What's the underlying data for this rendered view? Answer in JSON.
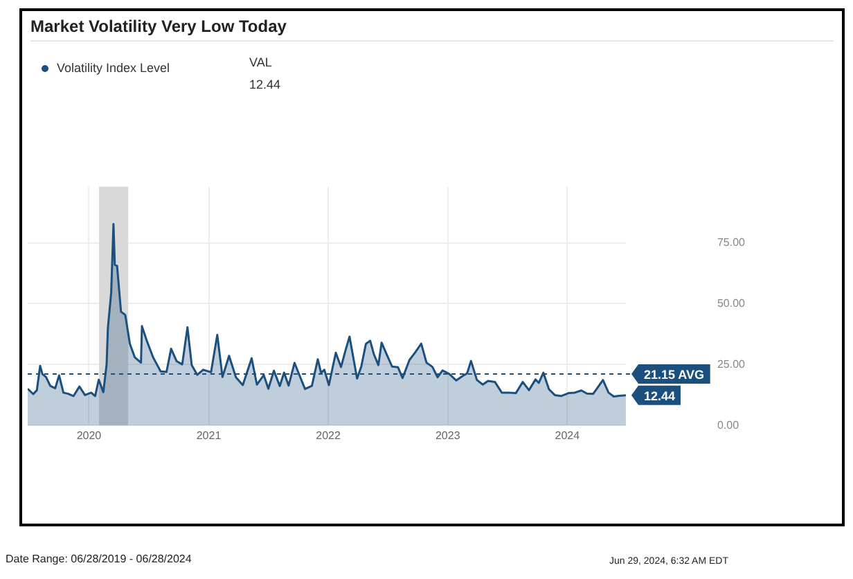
{
  "chart_data": {
    "type": "area",
    "title": "Market Volatility Very Low Today",
    "legend_title": "VAL",
    "legend": "top left",
    "x": [
      "2019-06-28",
      "2019-07-15",
      "2019-07-26",
      "2019-08-05",
      "2019-08-12",
      "2019-08-23",
      "2019-09-05",
      "2019-09-20",
      "2019-10-02",
      "2019-10-15",
      "2019-10-30",
      "2019-11-15",
      "2019-12-03",
      "2019-12-20",
      "2020-01-08",
      "2020-01-20",
      "2020-01-31",
      "2020-02-14",
      "2020-02-24",
      "2020-02-28",
      "2020-03-09",
      "2020-03-16",
      "2020-03-20",
      "2020-03-27",
      "2020-04-08",
      "2020-04-21",
      "2020-05-05",
      "2020-05-20",
      "2020-06-08",
      "2020-06-11",
      "2020-06-26",
      "2020-07-15",
      "2020-08-07",
      "2020-08-25",
      "2020-09-08",
      "2020-09-25",
      "2020-10-12",
      "2020-10-28",
      "2020-11-10",
      "2020-11-27",
      "2020-12-15",
      "2021-01-08",
      "2021-01-27",
      "2021-02-12",
      "2021-03-04",
      "2021-03-25",
      "2021-04-15",
      "2021-05-12",
      "2021-05-28",
      "2021-06-18",
      "2021-07-02",
      "2021-07-19",
      "2021-08-06",
      "2021-08-19",
      "2021-09-02",
      "2021-09-20",
      "2021-10-04",
      "2021-10-22",
      "2021-11-12",
      "2021-11-30",
      "2021-12-10",
      "2021-12-20",
      "2022-01-03",
      "2022-01-24",
      "2022-02-09",
      "2022-02-23",
      "2022-03-07",
      "2022-03-30",
      "2022-04-12",
      "2022-04-26",
      "2022-05-09",
      "2022-05-20",
      "2022-06-03",
      "2022-06-13",
      "2022-06-30",
      "2022-07-15",
      "2022-08-02",
      "2022-08-16",
      "2022-09-06",
      "2022-09-23",
      "2022-10-12",
      "2022-10-28",
      "2022-11-15",
      "2022-12-01",
      "2022-12-16",
      "2023-01-06",
      "2023-01-27",
      "2023-02-15",
      "2023-03-01",
      "2023-03-13",
      "2023-03-31",
      "2023-04-18",
      "2023-05-04",
      "2023-05-25",
      "2023-06-15",
      "2023-07-07",
      "2023-07-28",
      "2023-08-18",
      "2023-09-06",
      "2023-09-26",
      "2023-10-06",
      "2023-10-20",
      "2023-11-06",
      "2023-11-24",
      "2023-12-13",
      "2024-01-05",
      "2024-01-24",
      "2024-02-13",
      "2024-03-01",
      "2024-03-20",
      "2024-04-05",
      "2024-04-19",
      "2024-05-06",
      "2024-05-22",
      "2024-06-07",
      "2024-06-28"
    ],
    "series": [
      {
        "name": "Volatility Index Level",
        "color": "#1b4f7d",
        "values": [
          15.1,
          12.9,
          14.5,
          24.5,
          21.1,
          19.9,
          16.3,
          15.3,
          20.6,
          13.5,
          13.0,
          12.1,
          16.0,
          12.5,
          13.5,
          12.1,
          18.8,
          13.7,
          25.0,
          40.1,
          54.5,
          82.7,
          66.0,
          65.5,
          46.7,
          45.4,
          33.6,
          28.0,
          25.8,
          40.8,
          34.7,
          28.0,
          22.2,
          22.0,
          31.5,
          26.4,
          25.1,
          40.3,
          24.8,
          20.8,
          22.9,
          21.9,
          37.2,
          19.9,
          28.6,
          19.8,
          16.6,
          27.6,
          16.8,
          20.7,
          15.1,
          22.5,
          16.2,
          21.7,
          16.4,
          25.7,
          21.0,
          15.0,
          16.3,
          27.2,
          21.6,
          22.9,
          16.6,
          29.9,
          24.0,
          31.0,
          36.5,
          19.3,
          24.3,
          33.5,
          34.8,
          29.4,
          24.8,
          34.0,
          28.7,
          24.2,
          23.9,
          19.5,
          26.9,
          29.9,
          33.6,
          25.8,
          24.1,
          19.8,
          22.6,
          21.1,
          18.5,
          20.3,
          21.4,
          26.5,
          18.7,
          16.8,
          18.3,
          17.9,
          13.5,
          13.5,
          13.3,
          17.9,
          14.5,
          18.9,
          17.5,
          21.7,
          14.9,
          12.5,
          12.1,
          13.3,
          13.5,
          14.4,
          13.1,
          13.0,
          16.0,
          18.7,
          13.5,
          11.9,
          12.2,
          12.44
        ]
      }
    ],
    "value_labels": [
      null,
      null,
      null,
      null,
      null,
      null,
      null,
      null,
      null,
      null,
      null,
      null,
      null,
      null,
      null,
      null,
      null,
      null,
      null,
      null,
      null,
      null,
      null,
      null,
      null,
      null,
      null,
      null,
      null,
      null,
      null,
      null,
      null,
      null,
      null,
      null,
      null,
      null,
      null,
      null,
      null,
      null,
      null,
      null,
      null,
      null,
      null,
      null,
      null,
      null,
      null,
      null,
      null,
      null,
      null,
      null,
      null,
      null,
      null,
      null,
      null,
      null,
      null,
      null,
      null,
      null,
      null,
      null,
      null,
      null,
      null,
      null,
      null,
      null,
      null,
      null,
      null,
      null,
      null,
      null,
      null,
      null,
      null,
      null,
      null,
      null,
      null,
      null,
      null,
      null,
      null,
      null,
      null,
      null,
      null,
      null,
      null,
      null,
      null,
      null,
      null,
      null,
      null,
      null,
      null,
      null,
      null,
      null,
      null,
      null,
      null,
      null,
      null,
      null,
      null,
      "12.44"
    ],
    "xlim": [
      "2019-06-28",
      "2024-06-28"
    ],
    "xticks": [
      {
        "value": "2020-01-01",
        "label": "2020"
      },
      {
        "value": "2021-01-01",
        "label": "2021"
      },
      {
        "value": "2022-01-01",
        "label": "2022"
      },
      {
        "value": "2023-01-01",
        "label": "2023"
      },
      {
        "value": "2024-01-01",
        "label": "2024"
      }
    ],
    "ylim": [
      0,
      98
    ],
    "yticks": [
      {
        "value": 0,
        "label": "0.00"
      },
      {
        "value": 25,
        "label": "25.00"
      },
      {
        "value": 50,
        "label": "50.00"
      },
      {
        "value": 75,
        "label": "75.00"
      }
    ],
    "grid": true,
    "marker": "none",
    "line_style": "solid",
    "ref_lines": [
      {
        "axis": "y",
        "value": 21.15,
        "label": "21.15 AVG",
        "color": "#1b4f7d",
        "line_style": "dashed"
      }
    ],
    "bands": [
      {
        "axis": "x",
        "from": "2020-02-01",
        "to": "2020-04-30",
        "color": "#d9d9d9"
      }
    ],
    "annotations": [
      "Date Range: 06/28/2019 - 06/28/2024",
      "Jun 29, 2024, 6:32 AM EDT"
    ]
  }
}
